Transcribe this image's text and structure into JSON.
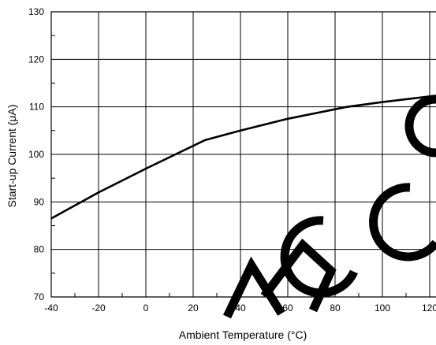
{
  "chart_data": {
    "type": "line",
    "title": "",
    "xlabel": "Ambient Temperature (°C)",
    "ylabel": "Start-up Current (μA)",
    "xlim": [
      -40,
      125
    ],
    "ylim": [
      70,
      130
    ],
    "x_ticks": [
      -40,
      -20,
      0,
      20,
      40,
      60,
      80,
      100,
      120
    ],
    "y_ticks": [
      70,
      80,
      90,
      100,
      110,
      120,
      130
    ],
    "grid": true,
    "series": [
      {
        "x": [
          -40,
          -20,
          0,
          25,
          40,
          60,
          85,
          100,
          125
        ],
        "y": [
          86.5,
          92,
          97,
          103,
          105,
          107.5,
          110,
          111,
          112.5
        ]
      }
    ]
  },
  "colors": {
    "line": "#000000",
    "grid": "#000000",
    "background": "#ffffff"
  },
  "watermark": "RECO"
}
